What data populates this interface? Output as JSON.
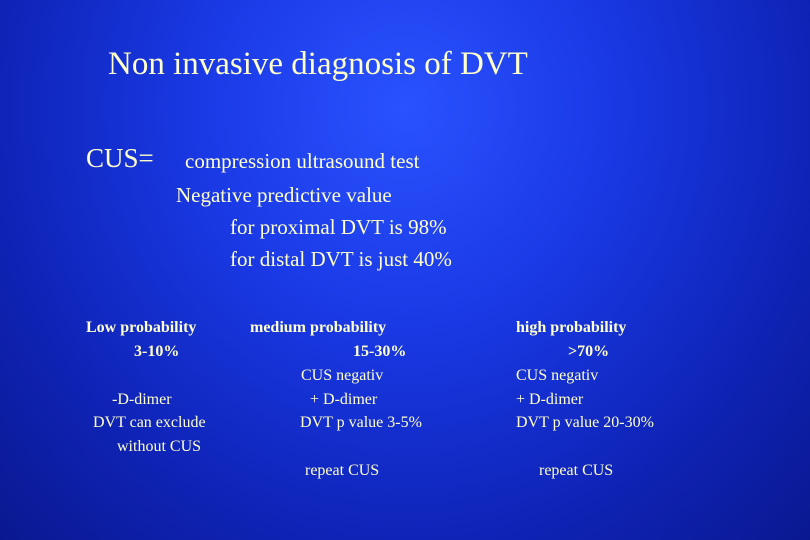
{
  "slide": {
    "title": "Non invasive diagnosis of DVT",
    "cus_abbrev": "CUS=",
    "cus_definition": "compression ultrasound test",
    "npv": {
      "heading": "Negative predictive value",
      "proximal": "for proximal DVT is 98%",
      "distal": "for distal DVT is just  40%"
    },
    "columns": {
      "low": {
        "label": "Low probability",
        "range": "3-10%",
        "line1": "-D-dimer",
        "line2": "DVT can exclude",
        "line3": "without CUS"
      },
      "medium": {
        "label": "medium probability",
        "range": "15-30%",
        "line1": "CUS negativ",
        "line2": "+ D-dimer",
        "line3": "DVT p value 3-5%",
        "line4": "repeat CUS"
      },
      "high": {
        "label": "high probability",
        "range": ">70%",
        "line1": "CUS negativ",
        "line2": "+ D-dimer",
        "line3": "DVT p value 20-30%",
        "line4": "repeat CUS"
      }
    }
  }
}
